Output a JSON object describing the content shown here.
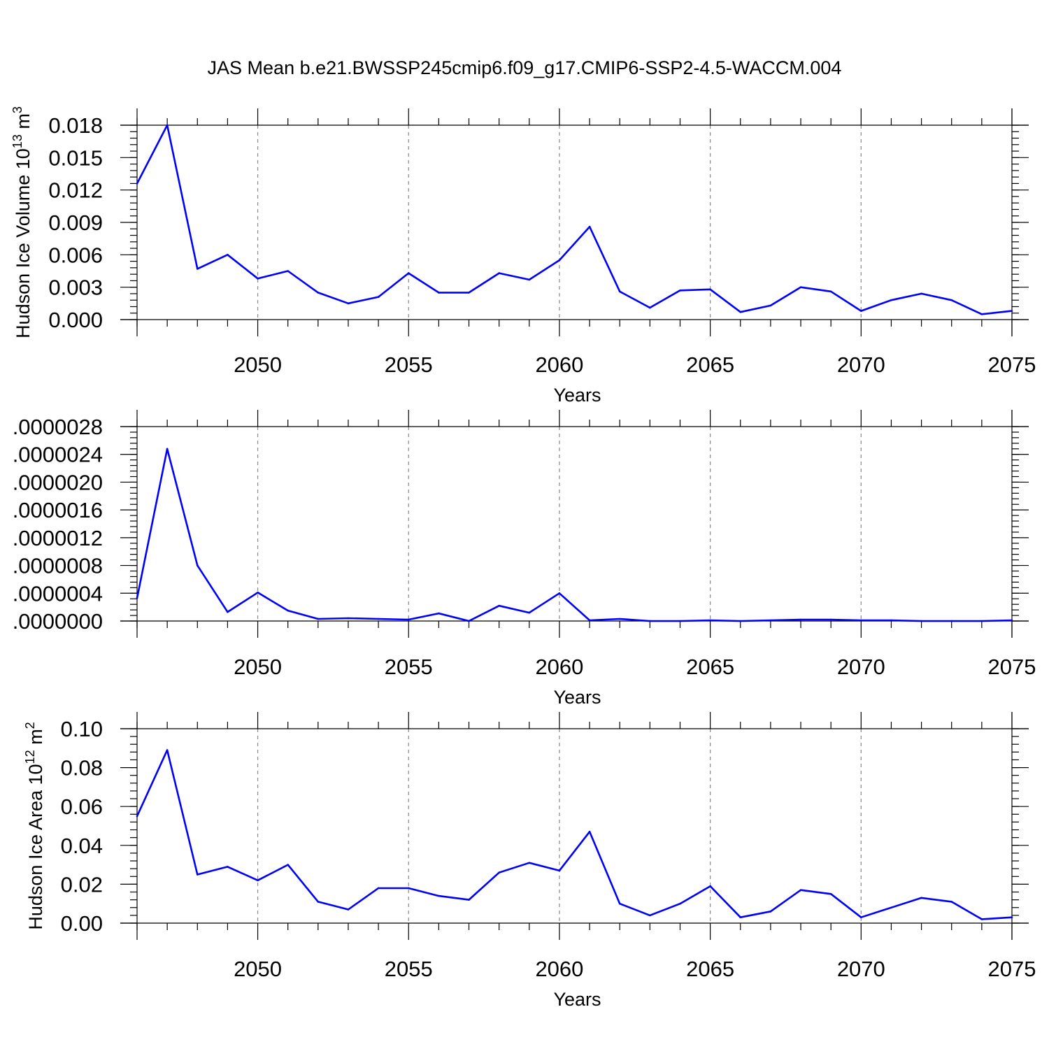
{
  "title": "JAS Mean b.e21.BWSSP245cmip6.f09_g17.CMIP6-SSP2-4.5-WACCM.004",
  "chart_data": [
    {
      "type": "line",
      "id": "volume",
      "title": "JAS Mean b.e21.BWSSP245cmip6.f09_g17.CMIP6-SSP2-4.5-WACCM.004",
      "xlabel": "Years",
      "ylabel_base": "Hudson Ice Volume 10",
      "ylabel_exp": "13",
      "ylabel_unit": " m",
      "ylabel_unit_exp": "3",
      "xlim": [
        2046,
        2075
      ],
      "ylim": [
        0,
        0.018
      ],
      "xticks": [
        2050,
        2055,
        2060,
        2065,
        2070,
        2075
      ],
      "xtick_labels": [
        "2050",
        "2055",
        "2060",
        "2065",
        "2070",
        "2075"
      ],
      "yticks": [
        0,
        0.003,
        0.006,
        0.009,
        0.012,
        0.015,
        0.018
      ],
      "ytick_labels": [
        "0.000",
        "0.003",
        "0.006",
        "0.009",
        "0.012",
        "0.015",
        "0.018"
      ],
      "y_minor_step": 0.0006,
      "grid": "dashed vertical at major x ticks",
      "color": "#0000ff",
      "x": [
        2046,
        2047,
        2048,
        2049,
        2050,
        2051,
        2052,
        2053,
        2054,
        2055,
        2056,
        2057,
        2058,
        2059,
        2060,
        2061,
        2062,
        2063,
        2064,
        2065,
        2066,
        2067,
        2068,
        2069,
        2070,
        2071,
        2072,
        2073,
        2074,
        2075
      ],
      "y": [
        0.0126,
        0.018,
        0.0047,
        0.006,
        0.0038,
        0.0045,
        0.0025,
        0.0015,
        0.0021,
        0.0043,
        0.0025,
        0.0025,
        0.0043,
        0.0037,
        0.0055,
        0.0086,
        0.0026,
        0.0011,
        0.0027,
        0.0028,
        0.0007,
        0.0013,
        0.003,
        0.0026,
        0.0008,
        0.0018,
        0.0024,
        0.0018,
        0.0005,
        0.0008
      ]
    },
    {
      "type": "line",
      "id": "middle",
      "xlabel": "Years",
      "xlim": [
        2046,
        2075
      ],
      "ylim": [
        0,
        2.8e-06
      ],
      "xticks": [
        2050,
        2055,
        2060,
        2065,
        2070,
        2075
      ],
      "xtick_labels": [
        "2050",
        "2055",
        "2060",
        "2065",
        "2070",
        "2075"
      ],
      "yticks": [
        0,
        4e-07,
        8e-07,
        1.2e-06,
        1.6e-06,
        2e-06,
        2.4e-06,
        2.8e-06
      ],
      "ytick_labels": [
        ".0000000",
        ".0000004",
        ".0000008",
        ".0000012",
        ".0000016",
        ".0000020",
        ".0000024",
        ".0000028"
      ],
      "y_minor_step": 8e-08,
      "grid": "dashed vertical at major x ticks",
      "color": "#0000ff",
      "x": [
        2046,
        2047,
        2048,
        2049,
        2050,
        2051,
        2052,
        2053,
        2054,
        2055,
        2056,
        2057,
        2058,
        2059,
        2060,
        2061,
        2062,
        2063,
        2064,
        2065,
        2066,
        2067,
        2068,
        2069,
        2070,
        2071,
        2072,
        2073,
        2074,
        2075
      ],
      "y": [
        3.3e-07,
        2.48e-06,
        8e-07,
        1.3e-07,
        4.1e-07,
        1.5e-07,
        3e-08,
        4e-08,
        3e-08,
        2e-08,
        1.1e-07,
        0.0,
        2.2e-07,
        1.2e-07,
        4e-07,
        1e-08,
        3e-08,
        0.0,
        0.0,
        1e-08,
        0.0,
        1e-08,
        2e-08,
        2e-08,
        1e-08,
        1e-08,
        0.0,
        0.0,
        0.0,
        1e-08
      ]
    },
    {
      "type": "line",
      "id": "area",
      "xlabel": "Years",
      "ylabel_base": "Hudson Ice Area 10",
      "ylabel_exp": "12",
      "ylabel_unit": " m",
      "ylabel_unit_exp": "2",
      "xlim": [
        2046,
        2075
      ],
      "ylim": [
        0,
        0.1
      ],
      "xticks": [
        2050,
        2055,
        2060,
        2065,
        2070,
        2075
      ],
      "xtick_labels": [
        "2050",
        "2055",
        "2060",
        "2065",
        "2070",
        "2075"
      ],
      "yticks": [
        0,
        0.02,
        0.04,
        0.06,
        0.08,
        0.1
      ],
      "ytick_labels": [
        "0.00",
        "0.02",
        "0.04",
        "0.06",
        "0.08",
        "0.10"
      ],
      "y_minor_step": 0.004,
      "grid": "dashed vertical at major x ticks",
      "color": "#0000ff",
      "x": [
        2046,
        2047,
        2048,
        2049,
        2050,
        2051,
        2052,
        2053,
        2054,
        2055,
        2056,
        2057,
        2058,
        2059,
        2060,
        2061,
        2062,
        2063,
        2064,
        2065,
        2066,
        2067,
        2068,
        2069,
        2070,
        2071,
        2072,
        2073,
        2074,
        2075
      ],
      "y": [
        0.055,
        0.089,
        0.025,
        0.029,
        0.022,
        0.03,
        0.011,
        0.007,
        0.018,
        0.018,
        0.014,
        0.012,
        0.026,
        0.031,
        0.027,
        0.047,
        0.01,
        0.004,
        0.01,
        0.019,
        0.003,
        0.006,
        0.017,
        0.015,
        0.003,
        0.008,
        0.013,
        0.011,
        0.002,
        0.003
      ]
    }
  ]
}
